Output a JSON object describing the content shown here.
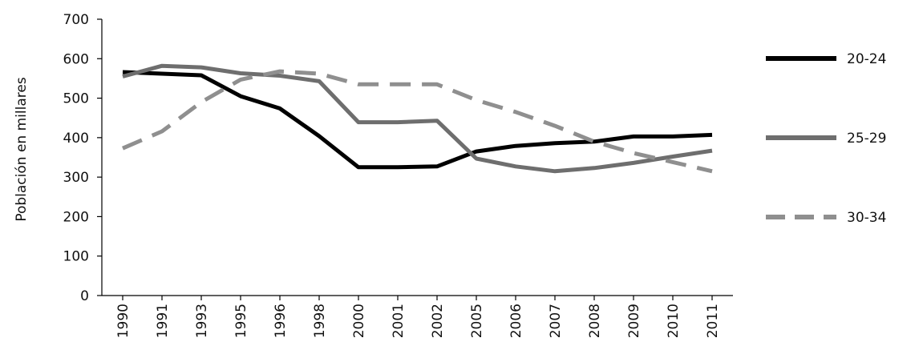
{
  "chart_data": {
    "type": "line",
    "title": "",
    "xlabel": "",
    "ylabel": "Población  en millares",
    "ylim": [
      0,
      700
    ],
    "yticks": [
      0,
      100,
      200,
      300,
      400,
      500,
      600,
      700
    ],
    "categories": [
      "1990",
      "1991",
      "1993",
      "1995",
      "1996",
      "1998",
      "2000",
      "2001",
      "2002",
      "2005",
      "2006",
      "2007",
      "2008",
      "2009",
      "2010",
      "2011"
    ],
    "grid": false,
    "legend_position": "right",
    "series": [
      {
        "name": "20-24",
        "color": "#000000",
        "dash": "solid",
        "values": [
          566,
          562,
          558,
          505,
          474,
          404,
          325,
          325,
          327,
          365,
          379,
          386,
          390,
          403,
          403,
          407
        ]
      },
      {
        "name": "25-29",
        "color": "#6e6e6e",
        "dash": "solid",
        "values": [
          555,
          582,
          578,
          563,
          557,
          543,
          439,
          439,
          443,
          347,
          327,
          315,
          323,
          336,
          352,
          367
        ]
      },
      {
        "name": "30-34",
        "color": "#8f8f8f",
        "dash": "dashed",
        "values": [
          373,
          416,
          490,
          547,
          568,
          562,
          535,
          535,
          535,
          495,
          465,
          430,
          390,
          361,
          338,
          315
        ]
      }
    ]
  }
}
